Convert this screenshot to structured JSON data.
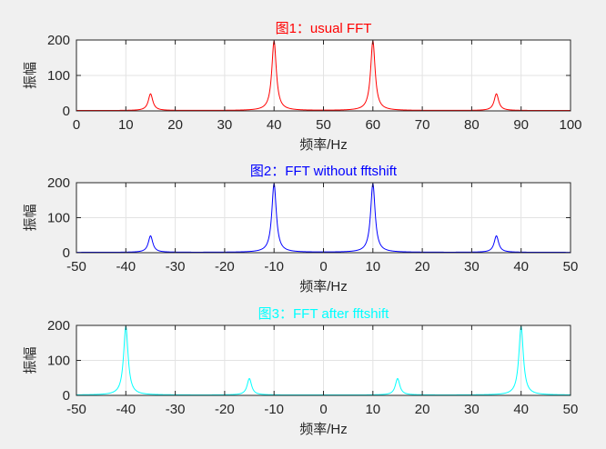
{
  "figure": {
    "background": "#f0f0f0"
  },
  "chart_data": [
    {
      "type": "line",
      "title": "图1：usual FFT",
      "title_color": "#ff0000",
      "color": "#ff0000",
      "xlabel": "频率/Hz",
      "ylabel": "振幅",
      "xlim": [
        0,
        100
      ],
      "ylim": [
        0,
        200
      ],
      "xticks": [
        0,
        10,
        20,
        30,
        40,
        50,
        60,
        70,
        80,
        90,
        100
      ],
      "yticks": [
        0,
        100,
        200
      ],
      "grid": true,
      "peaks": [
        {
          "x": 15,
          "y": 48
        },
        {
          "x": 40,
          "y": 197
        },
        {
          "x": 60,
          "y": 197
        },
        {
          "x": 85,
          "y": 48
        }
      ],
      "baseline": 1
    },
    {
      "type": "line",
      "title": "图2：FFT without fftshift",
      "title_color": "#0000ff",
      "color": "#0000ff",
      "xlabel": "频率/Hz",
      "ylabel": "振幅",
      "xlim": [
        -50,
        50
      ],
      "ylim": [
        0,
        200
      ],
      "xticks": [
        -50,
        -40,
        -30,
        -20,
        -10,
        0,
        10,
        20,
        30,
        40,
        50
      ],
      "yticks": [
        0,
        100,
        200
      ],
      "grid": true,
      "peaks": [
        {
          "x": -35,
          "y": 48
        },
        {
          "x": -10,
          "y": 197
        },
        {
          "x": 10,
          "y": 197
        },
        {
          "x": 35,
          "y": 48
        }
      ],
      "baseline": 1
    },
    {
      "type": "line",
      "title": "图3：FFT after fftshift",
      "title_color": "#00ffff",
      "color": "#00ffff",
      "xlabel": "频率/Hz",
      "ylabel": "振幅",
      "xlim": [
        -50,
        50
      ],
      "ylim": [
        0,
        200
      ],
      "xticks": [
        -50,
        -40,
        -30,
        -20,
        -10,
        0,
        10,
        20,
        30,
        40,
        50
      ],
      "yticks": [
        0,
        100,
        200
      ],
      "grid": true,
      "peaks": [
        {
          "x": -40,
          "y": 197
        },
        {
          "x": -15,
          "y": 48
        },
        {
          "x": 15,
          "y": 48
        },
        {
          "x": 40,
          "y": 197
        }
      ],
      "baseline": 1
    }
  ]
}
